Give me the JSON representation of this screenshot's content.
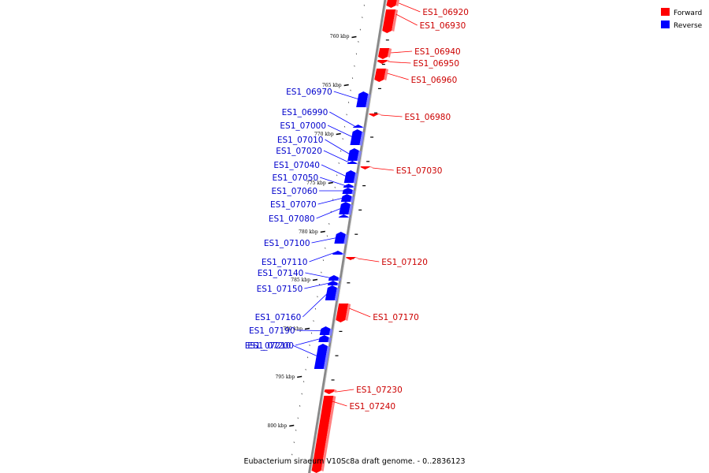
{
  "caption": "Eubacterium siraeum V10Sc8a draft genome. - 0..2836123",
  "colors": {
    "forward": "#ff0000",
    "reverse": "#0000ff",
    "backbone": "#888888"
  },
  "legend": [
    {
      "label": "Forward",
      "color": "#ff0000"
    },
    {
      "label": "Reverse",
      "color": "#0000ff"
    }
  ],
  "ticks": [
    {
      "label": "760 kbp"
    },
    {
      "label": "765 kbp"
    },
    {
      "label": "770 kbp"
    },
    {
      "label": "775 kbp"
    },
    {
      "label": "780 kbp"
    },
    {
      "label": "785 kbp"
    },
    {
      "label": "790 kbp"
    },
    {
      "label": "795 kbp"
    },
    {
      "label": "800 kbp"
    }
  ],
  "forward_genes": [
    {
      "name": "ES1_06920"
    },
    {
      "name": "ES1_06930"
    },
    {
      "name": "ES1_06940"
    },
    {
      "name": "ES1_06950"
    },
    {
      "name": "ES1_06960"
    },
    {
      "name": "ES1_06980"
    },
    {
      "name": "ES1_07030"
    },
    {
      "name": "ES1_07120"
    },
    {
      "name": "ES1_07170"
    },
    {
      "name": "ES1_07230"
    },
    {
      "name": "ES1_07240"
    }
  ],
  "reverse_genes": [
    {
      "name": "ES1_06970"
    },
    {
      "name": "ES1_06990"
    },
    {
      "name": "ES1_07000"
    },
    {
      "name": "ES1_07010"
    },
    {
      "name": "ES1_07020"
    },
    {
      "name": "ES1_07040"
    },
    {
      "name": "ES1_07050"
    },
    {
      "name": "ES1_07060"
    },
    {
      "name": "ES1_07070"
    },
    {
      "name": "ES1_07080"
    },
    {
      "name": "ES1_07100"
    },
    {
      "name": "ES1_07110"
    },
    {
      "name": "ES1_07140"
    },
    {
      "name": "ES1_07150"
    },
    {
      "name": "ES1_07160"
    },
    {
      "name": "ES1_07190"
    },
    {
      "name": "ES1_07200"
    },
    {
      "name": "ES1_07210"
    }
  ]
}
